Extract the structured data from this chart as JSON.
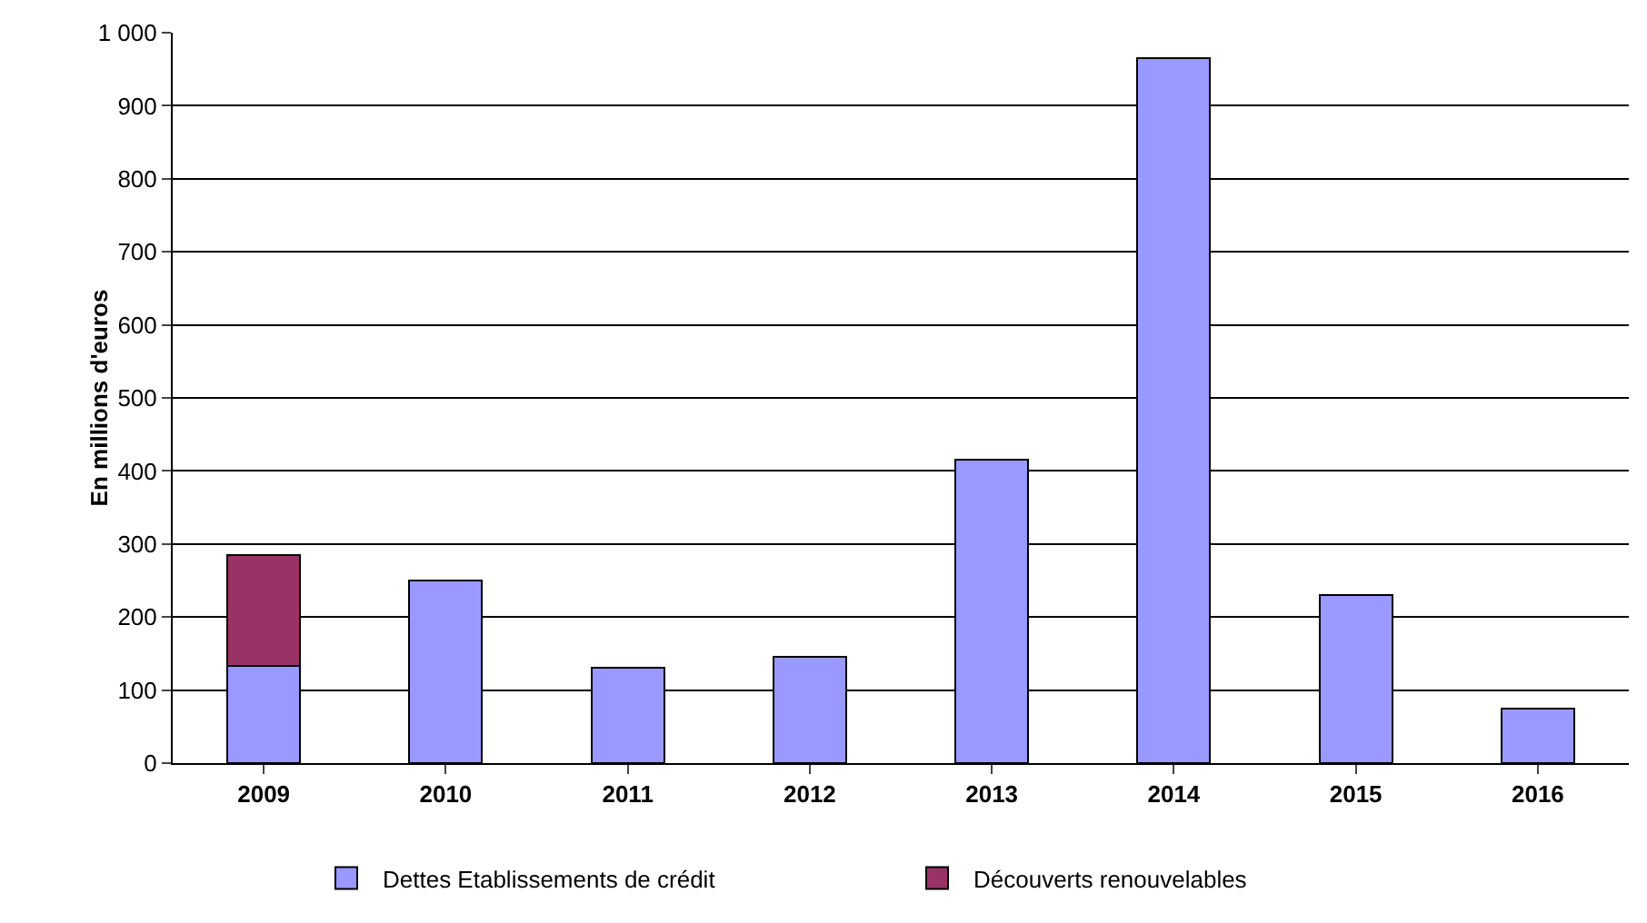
{
  "chart_data": {
    "type": "bar",
    "stacked": true,
    "ylabel": "En millions d'euros",
    "categories": [
      "2009",
      "2010",
      "2011",
      "2012",
      "2013",
      "2014",
      "2015",
      "2016"
    ],
    "series": [
      {
        "name": "Dettes Etablissements de crédit",
        "color": "#9999ff",
        "values": [
          133,
          250,
          130,
          145,
          415,
          965,
          230,
          75
        ]
      },
      {
        "name": "Découverts renouvelables",
        "color": "#993366",
        "values": [
          152,
          null,
          null,
          null,
          null,
          null,
          null,
          null
        ]
      }
    ],
    "ylim": [
      0,
      1000
    ],
    "yticks": [
      0,
      100,
      200,
      300,
      400,
      500,
      600,
      700,
      800,
      900,
      {
        "value": 1000,
        "label": "1 000"
      }
    ],
    "grid": "y",
    "legend": "bottom"
  }
}
